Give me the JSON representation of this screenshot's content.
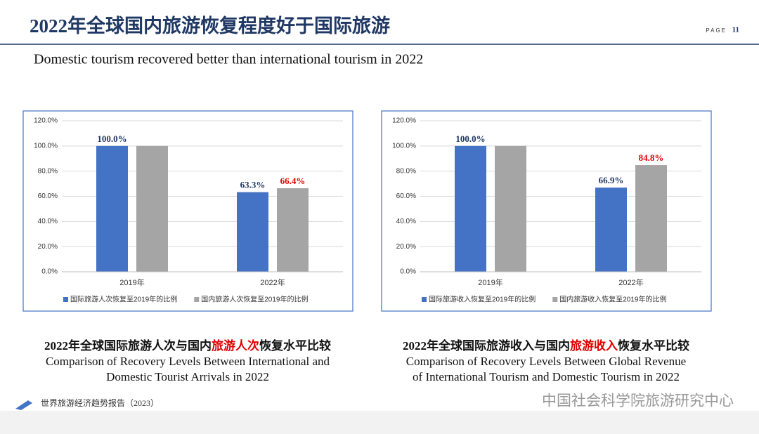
{
  "header": {
    "title": "2022年全球国内旅游恢复程度好于国际旅游",
    "page_label": "PAGE",
    "page_number": "11",
    "subtitle": "Domestic tourism recovered better than international tourism in 2022"
  },
  "chart_data": [
    {
      "type": "bar",
      "categories": [
        "2019年",
        "2022年"
      ],
      "series": [
        {
          "name": "国际旅游人次恢复至2019年的比例",
          "color": "#4472c4",
          "label_color": "#1f3864",
          "values": [
            100.0,
            63.3
          ],
          "value_labels": [
            "100.0%",
            "63.3%"
          ]
        },
        {
          "name": "国内旅游人次恢复至2019年的比例",
          "color": "#a5a5a5",
          "label_color": "#e00000",
          "values": [
            100.0,
            66.4
          ],
          "value_labels": [
            null,
            "66.4%"
          ]
        }
      ],
      "ylim": [
        0,
        120
      ],
      "yticks": [
        {
          "value": 0,
          "label": "0.0%"
        },
        {
          "value": 20,
          "label": "20.0%"
        },
        {
          "value": 40,
          "label": "40.0%"
        },
        {
          "value": 60,
          "label": "60.0%"
        },
        {
          "value": 80,
          "label": "80.0%"
        },
        {
          "value": 100,
          "label": "100.0%"
        },
        {
          "value": 120,
          "label": "120.0%"
        }
      ],
      "grid": true,
      "legend": "bottom"
    },
    {
      "type": "bar",
      "categories": [
        "2019年",
        "2022年"
      ],
      "series": [
        {
          "name": "国际旅游收入恢复至2019年的比例",
          "color": "#4472c4",
          "label_color": "#1f3864",
          "values": [
            100.0,
            66.9
          ],
          "value_labels": [
            "100.0%",
            "66.9%"
          ]
        },
        {
          "name": "国内旅游收入恢复至2019年的比例",
          "color": "#a5a5a5",
          "label_color": "#e00000",
          "values": [
            100.0,
            84.8
          ],
          "value_labels": [
            null,
            "84.8%"
          ]
        }
      ],
      "ylim": [
        0,
        120
      ],
      "yticks": [
        {
          "value": 0,
          "label": "0.0%"
        },
        {
          "value": 20,
          "label": "20.0%"
        },
        {
          "value": 40,
          "label": "40.0%"
        },
        {
          "value": 60,
          "label": "60.0%"
        },
        {
          "value": 80,
          "label": "80.0%"
        },
        {
          "value": 100,
          "label": "100.0%"
        },
        {
          "value": 120,
          "label": "120.0%"
        }
      ],
      "grid": true,
      "legend": "bottom"
    }
  ],
  "captions": [
    {
      "title_before": "2022年全球国际旅游人次与国内",
      "title_highlight": "旅游人次",
      "title_after": "恢复水平比较",
      "english_lines": [
        "Comparison of Recovery Levels Between International and",
        "Domestic Tourist Arrivals in 2022"
      ]
    },
    {
      "title_before": "2022年全球国际旅游收入与国内",
      "title_highlight": "旅游收入",
      "title_after": "恢复水平比较",
      "english_lines": [
        "Comparison of Recovery Levels Between Global Revenue",
        "of  International Tourism and Domestic Tourism in 2022"
      ]
    }
  ],
  "footer": {
    "report": "世界旅游经济趋势报告（2023）",
    "watermark": "中国社会科学院旅游研究中心"
  }
}
